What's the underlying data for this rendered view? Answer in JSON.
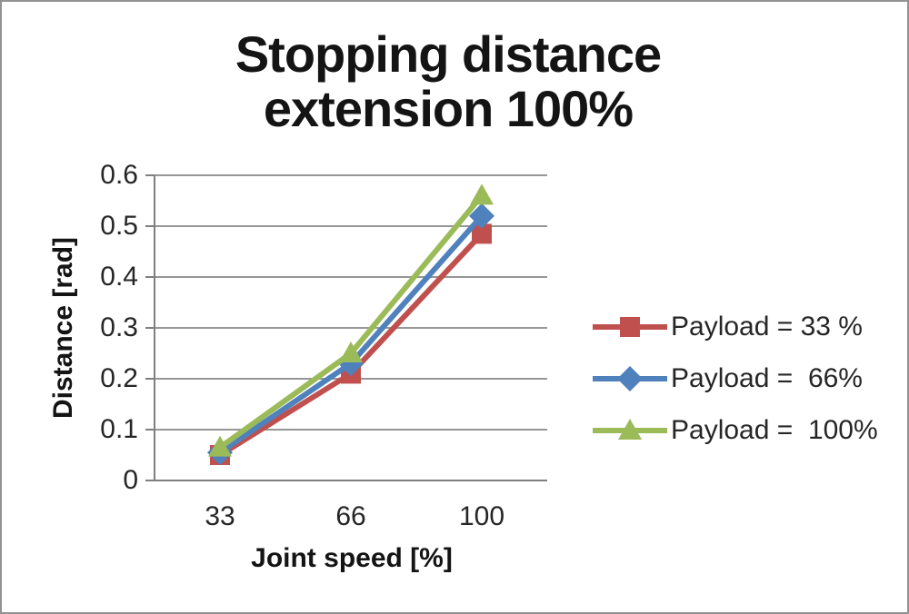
{
  "chart_data": {
    "type": "line",
    "title_line1": "Stopping distance",
    "title_line2": "extension 100%",
    "xlabel": "Joint speed [%]",
    "ylabel": "Distance [rad]",
    "categories": [
      "33",
      "66",
      "100"
    ],
    "y_ticks": [
      "0.6",
      "0.5",
      "0.4",
      "0.3",
      "0.2",
      "0.1",
      "0"
    ],
    "ylim": [
      0,
      0.6
    ],
    "grid": "horizontal",
    "legend_position": "right",
    "series": [
      {
        "name": "Payload = 33 %",
        "marker": "square",
        "color": "#C0504D",
        "values": [
          0.05,
          0.21,
          0.485
        ]
      },
      {
        "name": "Payload =  66%",
        "marker": "diamond",
        "color": "#4F81BD",
        "values": [
          0.055,
          0.23,
          0.52
        ]
      },
      {
        "name": "Payload =  100%",
        "marker": "triangle",
        "color": "#9BBB59",
        "values": [
          0.065,
          0.25,
          0.56
        ]
      }
    ],
    "axis_color": "#7f7f7f",
    "grid_color": "#969696",
    "background_color": "#ffffff",
    "border_color": "#929292"
  }
}
